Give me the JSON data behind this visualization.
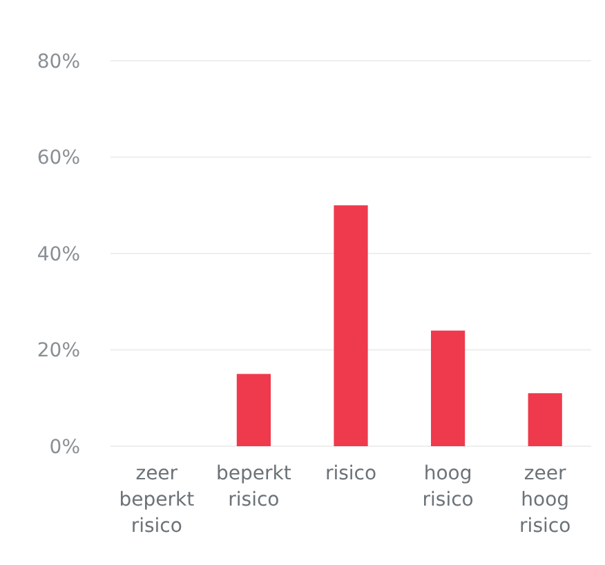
{
  "chart_data": {
    "type": "bar",
    "categories": [
      "zeer beperkt risico",
      "beperkt risico",
      "risico",
      "hoog risico",
      "zeer hoog risico"
    ],
    "values": [
      0,
      15,
      50,
      24,
      11
    ],
    "color": "#ee3a4c",
    "ylim": [
      0,
      80
    ],
    "yticks": [
      {
        "value": 0,
        "label": "0%"
      },
      {
        "value": 20,
        "label": "20%"
      },
      {
        "value": 40,
        "label": "40%"
      },
      {
        "value": 60,
        "label": "60%"
      },
      {
        "value": 80,
        "label": "80%"
      }
    ],
    "grid": "y"
  }
}
